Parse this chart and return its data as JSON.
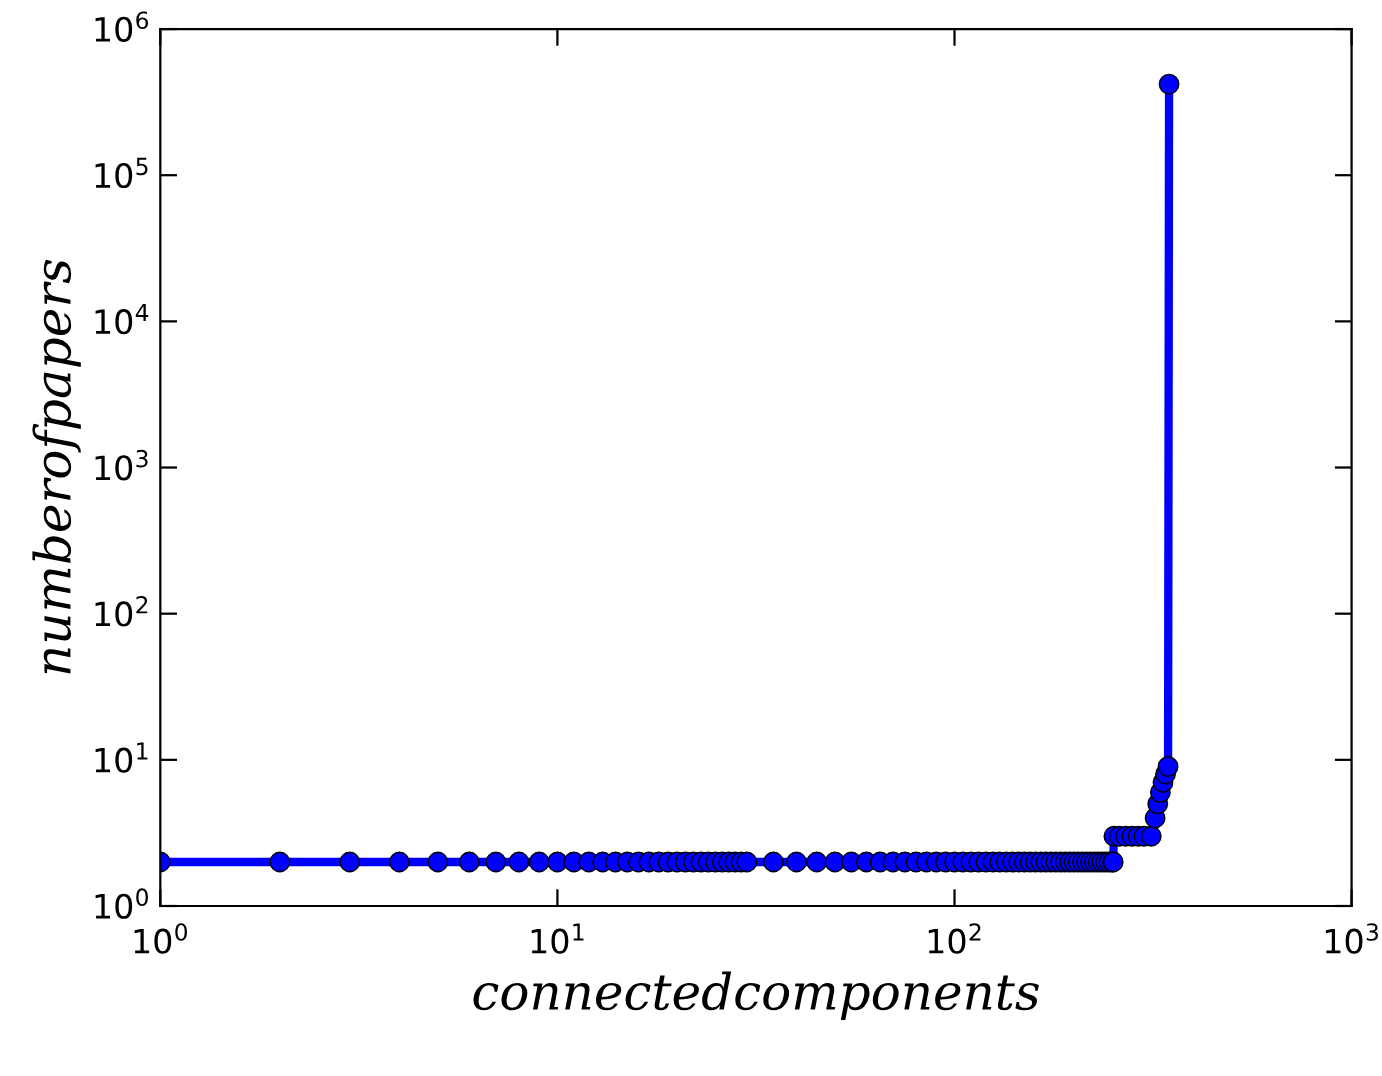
{
  "chart_data": {
    "type": "line",
    "xlabel": "connectedcomponents",
    "ylabel": "numberofpapers",
    "log": "xy",
    "marker": "circle",
    "line_style": "solid",
    "grid": false,
    "legend": false,
    "xlim": [
      1,
      1000
    ],
    "ylim": [
      1,
      1000000
    ],
    "xticks": [
      {
        "value": 1,
        "label": "10$^{0}$"
      },
      {
        "value": 10,
        "label": "10$^{1}$"
      },
      {
        "value": 100,
        "label": "10$^{2}$"
      },
      {
        "value": 1000,
        "label": "10$^{3}$"
      }
    ],
    "yticks": [
      {
        "value": 1,
        "label": "10$^{0}$"
      },
      {
        "value": 10,
        "label": "10$^{1}$"
      },
      {
        "value": 100,
        "label": "10$^{2}$"
      },
      {
        "value": 1000,
        "label": "10$^{3}$"
      },
      {
        "value": 10000,
        "label": "10$^{4}$"
      },
      {
        "value": 100000,
        "label": "10$^{5}$"
      },
      {
        "value": 1000000,
        "label": "10$^{6}$"
      }
    ],
    "series": [
      {
        "color": "#0000ff",
        "x": [
          1,
          2,
          3,
          4,
          5,
          6,
          7,
          8,
          9,
          10,
          11,
          12,
          13,
          14,
          15,
          16,
          17,
          18,
          19,
          20,
          21,
          22,
          23,
          24,
          25,
          26,
          27,
          28,
          29,
          30,
          35,
          40,
          45,
          50,
          55,
          60,
          65,
          70,
          75,
          80,
          85,
          90,
          95,
          100,
          105,
          110,
          115,
          120,
          125,
          130,
          135,
          140,
          145,
          150,
          155,
          160,
          165,
          170,
          175,
          180,
          185,
          190,
          195,
          200,
          205,
          210,
          215,
          220,
          225,
          230,
          235,
          240,
          245,
          250,
          251,
          252,
          260,
          270,
          280,
          290,
          300,
          313,
          320,
          325,
          330,
          335,
          340,
          345,
          347
        ],
        "values": [
          2,
          2,
          2,
          2,
          2,
          2,
          2,
          2,
          2,
          2,
          2,
          2,
          2,
          2,
          2,
          2,
          2,
          2,
          2,
          2,
          2,
          2,
          2,
          2,
          2,
          2,
          2,
          2,
          2,
          2,
          2,
          2,
          2,
          2,
          2,
          2,
          2,
          2,
          2,
          2,
          2,
          2,
          2,
          2,
          2,
          2,
          2,
          2,
          2,
          2,
          2,
          2,
          2,
          2,
          2,
          2,
          2,
          2,
          2,
          2,
          2,
          2,
          2,
          2,
          2,
          2,
          2,
          2,
          2,
          2,
          2,
          2,
          2,
          2,
          2,
          3,
          3,
          3,
          3,
          3,
          3,
          3,
          4,
          5,
          6,
          7,
          8,
          9,
          420000
        ]
      }
    ]
  }
}
